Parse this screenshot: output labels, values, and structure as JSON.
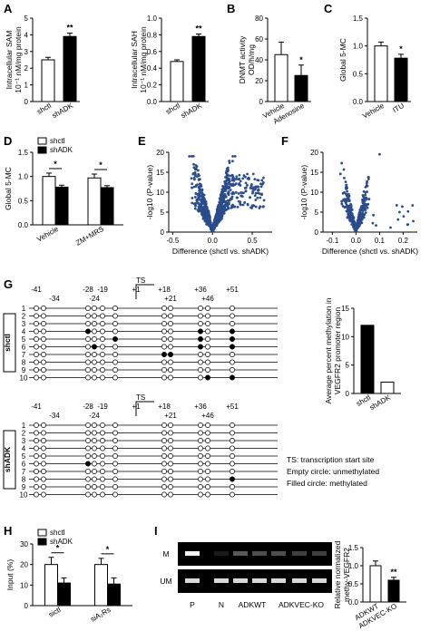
{
  "figure": {
    "panel_letters": [
      "A",
      "B",
      "C",
      "D",
      "E",
      "F",
      "G",
      "H",
      "I"
    ]
  },
  "chart_data": [
    {
      "id": "A1",
      "type": "bar",
      "ylabel": "Intracellular SAM 10⁻¹ nM/mg protein",
      "categories": [
        "shctl",
        "shADK"
      ],
      "values": [
        2.5,
        3.9
      ],
      "errors": [
        0.15,
        0.2
      ],
      "ylim": [
        0,
        5
      ],
      "yticks": [
        "0",
        "1",
        "2",
        "3",
        "4",
        "5"
      ],
      "fills": [
        "#ffffff",
        "#000000"
      ],
      "significance": [
        {
          "between": [
            0,
            1
          ],
          "label": "**"
        }
      ]
    },
    {
      "id": "A2",
      "type": "bar",
      "ylabel": "Intracellular SAH 10⁻¹ nM/mg protein",
      "categories": [
        "shctl",
        "shADK"
      ],
      "values": [
        0.48,
        0.78
      ],
      "errors": [
        0.02,
        0.03
      ],
      "ylim": [
        0,
        1.0
      ],
      "yticks": [
        "0.0",
        "0.2",
        "0.4",
        "0.6",
        "0.8",
        "1.0"
      ],
      "fills": [
        "#ffffff",
        "#000000"
      ],
      "significance": [
        {
          "between": [
            0,
            1
          ],
          "label": "**"
        }
      ]
    },
    {
      "id": "B",
      "type": "bar",
      "ylabel": "DNMT activity OD/h/mg",
      "categories": [
        "Vehicle",
        "Adenosine"
      ],
      "values": [
        45,
        25
      ],
      "errors": [
        12,
        10
      ],
      "ylim": [
        0,
        80
      ],
      "yticks": [
        "0",
        "20",
        "40",
        "60",
        "80"
      ],
      "fills": [
        "#ffffff",
        "#000000"
      ],
      "significance": [
        {
          "between": [
            0,
            1
          ],
          "label": "*"
        }
      ]
    },
    {
      "id": "C",
      "type": "bar",
      "ylabel": "Global 5-MC",
      "categories": [
        "Vehicle",
        "ITU"
      ],
      "values": [
        1.0,
        0.78
      ],
      "errors": [
        0.07,
        0.07
      ],
      "ylim": [
        0,
        1.5
      ],
      "yticks": [
        "0.0",
        "0.5",
        "1.0",
        "1.5"
      ],
      "fills": [
        "#ffffff",
        "#000000"
      ],
      "significance": [
        {
          "between": [
            0,
            1
          ],
          "label": "*"
        }
      ]
    },
    {
      "id": "D",
      "type": "bar",
      "ylabel": "Global 5-MC",
      "legend": [
        "shctl",
        "shADK"
      ],
      "categories": [
        "Vehicle",
        "ZM+MRS"
      ],
      "series": [
        {
          "name": "shctl",
          "values": [
            1.0,
            0.97
          ],
          "errors": [
            0.07,
            0.08
          ]
        },
        {
          "name": "shADK",
          "values": [
            0.78,
            0.77
          ],
          "errors": [
            0.04,
            0.04
          ]
        }
      ],
      "ylim": [
        0,
        1.5
      ],
      "yticks": [
        "0.0",
        "0.5",
        "1.0",
        "1.5"
      ],
      "significance": [
        "*",
        "*"
      ]
    },
    {
      "id": "E",
      "type": "scatter",
      "xlabel": "Difference (shctl vs. shADK)",
      "ylabel": "-log10 (P-value)",
      "xticks": [
        "-0.5",
        "0.0",
        "0.5"
      ],
      "xlim": [
        -0.55,
        0.75
      ],
      "yticks": [
        "0",
        "5",
        "10",
        "15",
        "20"
      ],
      "ylim": [
        0,
        20
      ],
      "color": "#2b4c8c",
      "points": "volcano-wide"
    },
    {
      "id": "F",
      "type": "scatter",
      "xlabel": "Difference (shctl vs. shADK)",
      "ylabel": "-log10 (P-value)",
      "xticks": [
        "-0.1",
        "0.0",
        "0.1",
        "0.2"
      ],
      "xlim": [
        -0.14,
        0.26
      ],
      "yticks": [
        "0",
        "5",
        "10",
        "15",
        "20"
      ],
      "ylim": [
        0,
        20
      ],
      "color": "#2b4c8c",
      "points": "volcano-narrow"
    },
    {
      "id": "G_bar",
      "type": "bar",
      "ylabel": "Average percent methylation in VEGFR2 promoter region",
      "categories": [
        "shctl",
        "shADK"
      ],
      "values": [
        12,
        2
      ],
      "ylim": [
        0,
        15
      ],
      "yticks": [
        "0",
        "5",
        "10",
        "15"
      ],
      "fills": [
        "#000000",
        "#ffffff"
      ]
    },
    {
      "id": "H",
      "type": "bar",
      "ylabel": "Input (%)",
      "legend": [
        "shctl",
        "shADK"
      ],
      "categories": [
        "sictl",
        "siA₂Rs"
      ],
      "series": [
        {
          "name": "shctl",
          "values": [
            20,
            20
          ],
          "errors": [
            3.5,
            3
          ]
        },
        {
          "name": "shADK",
          "values": [
            11,
            10.5
          ],
          "errors": [
            2.5,
            3
          ]
        }
      ],
      "ylim": [
        0,
        30
      ],
      "yticks": [
        "0",
        "10",
        "20",
        "30"
      ],
      "significance": [
        "*",
        "*"
      ]
    },
    {
      "id": "I_bar",
      "type": "bar",
      "ylabel": "Relative normalized methy-VEGFR2",
      "categories": [
        "ADKWT",
        "ADKVEC-KO"
      ],
      "values": [
        1.0,
        0.6
      ],
      "errors": [
        0.13,
        0.08
      ],
      "ylim": [
        0,
        1.5
      ],
      "yticks": [
        "0.0",
        "0.5",
        "1.0",
        "1.5"
      ],
      "fills": [
        "#ffffff",
        "#000000"
      ],
      "significance": [
        {
          "between": [
            0,
            1
          ],
          "label": "**"
        }
      ]
    }
  ],
  "panel_g": {
    "positions_top": [
      "-41",
      "-28",
      "-19",
      "+1",
      "+18",
      "+36",
      "+51"
    ],
    "positions_bottom": [
      "-34",
      "-24",
      "+21",
      "+46"
    ],
    "ts_label": "TS",
    "groups": [
      {
        "name": "shctl",
        "methylated": [
          [],
          [],
          [],
          [
            [
              1,
              6
            ]
          ],
          [
            [
              2,
              3
            ]
          ],
          [],
          [
            [
              3,
              1
            ],
            [
              3,
              4
            ]
          ],
          [],
          [],
          [
            [
              0,
              8
            ],
            [
              2,
              9
            ],
            [
              3,
              10
            ]
          ]
        ]
      },
      {
        "name": "shADK",
        "methylated": [
          [],
          [],
          [],
          [],
          [],
          [],
          [],
          [],
          [],
          []
        ]
      }
    ],
    "row_numbers": [
      "1",
      "2",
      "3",
      "4",
      "5",
      "6",
      "7",
      "8",
      "9",
      "10"
    ],
    "legend_lines": [
      "TS: transcription start site",
      "Empty circle: unmethylated",
      "Filled circle: methylated"
    ]
  },
  "panel_i": {
    "gel_rows": [
      "M",
      "UM"
    ],
    "lanes": [
      "P",
      "N",
      "ADKWT",
      "ADKVEC-KO"
    ]
  }
}
